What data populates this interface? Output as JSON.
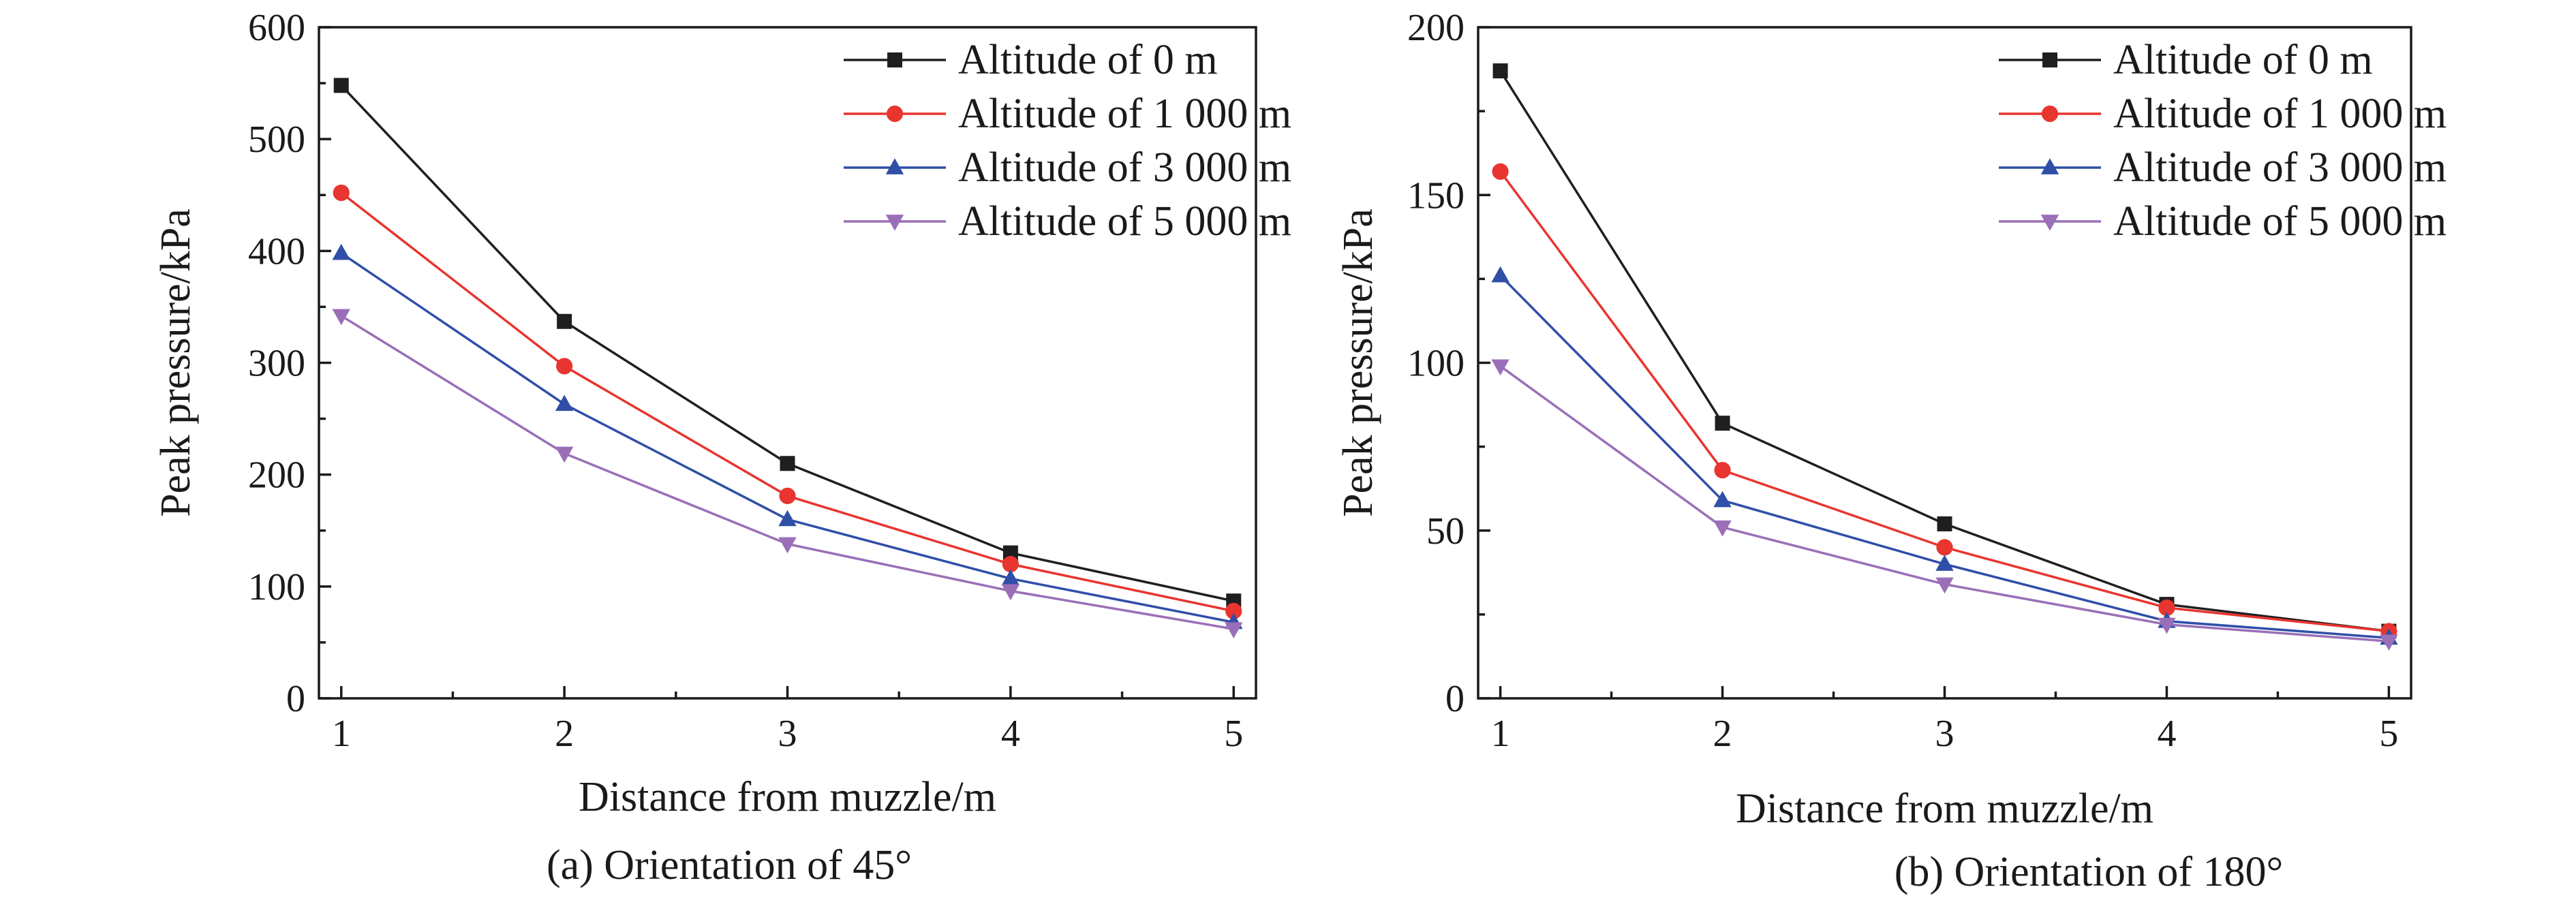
{
  "chart_data": [
    {
      "type": "line",
      "caption": "(a) Orientation of 45°",
      "xlabel": "Distance from muzzle/m",
      "ylabel": "Peak pressure/kPa",
      "x": [
        1,
        2,
        3,
        4,
        5
      ],
      "xlim": [
        0.9,
        5.1
      ],
      "ylim": [
        0,
        600
      ],
      "yticks": [
        0,
        100,
        200,
        300,
        400,
        500,
        600
      ],
      "xticks": [
        1,
        2,
        3,
        4,
        5
      ],
      "legend_position": "top-right",
      "grid": false,
      "series": [
        {
          "name": "Altitude of 0 m",
          "color": "#1f1f1f",
          "marker": "square",
          "values": [
            548,
            337,
            210,
            130,
            87
          ]
        },
        {
          "name": "Altitude of 1 000 m",
          "color": "#e8352f",
          "marker": "circle",
          "values": [
            452,
            297,
            181,
            120,
            78
          ]
        },
        {
          "name": "Altitude of 3 000 m",
          "color": "#2f4fa8",
          "marker": "triangle-up",
          "values": [
            398,
            263,
            160,
            107,
            68
          ]
        },
        {
          "name": "Altitude of 5 000 m",
          "color": "#9a6fb8",
          "marker": "triangle-down",
          "values": [
            342,
            219,
            138,
            96,
            62
          ]
        }
      ]
    },
    {
      "type": "line",
      "caption": "(b) Orientation of 180°",
      "xlabel": "Distance from muzzle/m",
      "ylabel": "Peak pressure/kPa",
      "x": [
        1,
        2,
        3,
        4,
        5
      ],
      "xlim": [
        0.9,
        5.1
      ],
      "ylim": [
        0,
        200
      ],
      "yticks": [
        0,
        50,
        100,
        150,
        200
      ],
      "xticks": [
        1,
        2,
        3,
        4,
        5
      ],
      "legend_position": "top-right",
      "grid": false,
      "series": [
        {
          "name": "Altitude of 0 m",
          "color": "#1f1f1f",
          "marker": "square",
          "values": [
            187,
            82,
            52,
            28,
            20
          ]
        },
        {
          "name": "Altitude of 1 000 m",
          "color": "#e8352f",
          "marker": "circle",
          "values": [
            157,
            68,
            45,
            27,
            20
          ]
        },
        {
          "name": "Altitude of 3 000 m",
          "color": "#2f4fa8",
          "marker": "triangle-up",
          "values": [
            126,
            59,
            40,
            23,
            18
          ]
        },
        {
          "name": "Altitude of 5 000 m",
          "color": "#9a6fb8",
          "marker": "triangle-down",
          "values": [
            99,
            51,
            34,
            22,
            17
          ]
        }
      ]
    }
  ]
}
